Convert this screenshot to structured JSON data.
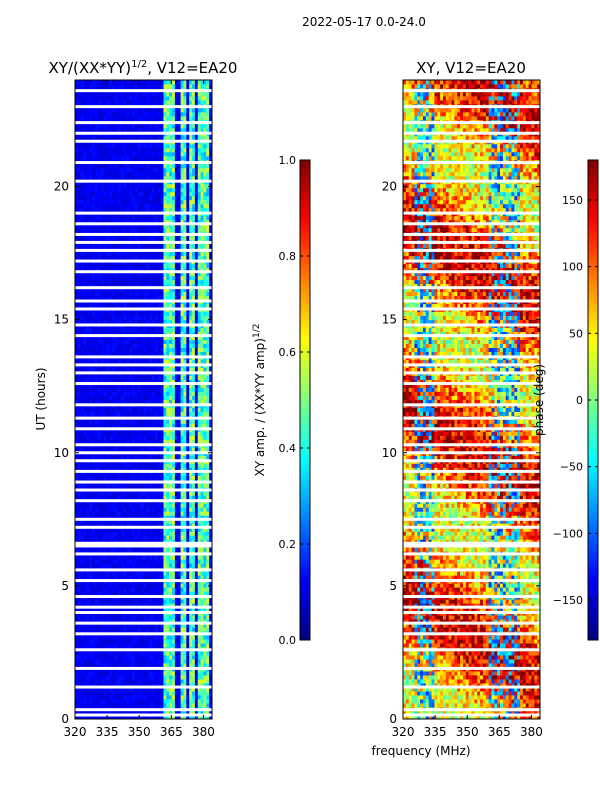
{
  "figure": {
    "suptitle": "2022-05-17 0.0-24.0",
    "shared_xlabel": "frequency (MHz)"
  },
  "colors": {
    "stops": [
      "#00007f",
      "#0000ff",
      "#007fff",
      "#00ffff",
      "#7fff7f",
      "#ffff00",
      "#ff7f00",
      "#ff0000",
      "#7f0000"
    ],
    "gap": "#ffffff"
  },
  "chart_data": [
    {
      "type": "heatmap",
      "title_prefix": "XY/(XX*YY)",
      "title_exponent": "1/2",
      "title_suffix": ", V12=EA20",
      "xlabel": "",
      "ylabel": "UT (hours)",
      "xlim": [
        320,
        384
      ],
      "ylim": [
        0,
        24
      ],
      "xticks": [
        "320",
        "335",
        "350",
        "365",
        "380"
      ],
      "xtick_values": [
        320,
        335,
        350,
        365,
        380
      ],
      "yticks": [
        "0",
        "5",
        "10",
        "15",
        "20"
      ],
      "ytick_values": [
        0,
        5,
        10,
        15,
        20
      ],
      "colorbar": {
        "label_prefix": "XY amp. / (XX*YY amp)",
        "label_exponent": "1/2",
        "range": [
          0.0,
          1.0
        ],
        "ticks": [
          "0.0",
          "0.2",
          "0.4",
          "0.6",
          "0.8",
          "1.0"
        ],
        "tick_values": [
          0.0,
          0.2,
          0.4,
          0.6,
          0.8,
          1.0
        ]
      },
      "pattern": "low amplitude (~0.1) below 361 MHz; bright bands (0.3-0.6) at 362-366, 369-372, 374-376, 378-382 MHz",
      "bright_bands_mhz": [
        [
          362,
          366
        ],
        [
          369,
          372
        ],
        [
          374,
          376
        ],
        [
          378,
          382
        ]
      ],
      "data_gaps_hours": [
        0.15,
        0.35,
        1.2,
        1.9,
        2.6,
        3.2,
        3.6,
        4.0,
        4.2,
        4.6,
        5.2,
        5.6,
        6.2,
        6.5,
        6.6,
        7.2,
        7.5,
        8.2,
        8.6,
        8.9,
        9.3,
        9.7,
        10.0,
        10.3,
        10.9,
        11.3,
        11.8,
        12.6,
        13.0,
        13.3,
        13.6,
        14.4,
        14.8,
        15.4,
        15.7,
        16.2,
        16.8,
        17.2,
        17.6,
        17.9,
        18.2,
        18.6,
        19.0,
        20.2,
        20.9,
        21.7,
        22.0,
        22.4,
        23.0,
        23.6
      ]
    },
    {
      "type": "heatmap",
      "title": "XY, V12=EA20",
      "xlabel": "frequency (MHz)",
      "ylabel": "",
      "xlim": [
        320,
        384
      ],
      "ylim": [
        0,
        24
      ],
      "xticks": [
        "320",
        "335",
        "350",
        "365",
        "380"
      ],
      "xtick_values": [
        320,
        335,
        350,
        365,
        380
      ],
      "yticks": [
        "0",
        "5",
        "10",
        "15",
        "20"
      ],
      "ytick_values": [
        0,
        5,
        10,
        15,
        20
      ],
      "colorbar": {
        "label": "phase (deg)",
        "range": [
          -180,
          180
        ],
        "ticks": [
          "−150",
          "−100",
          "−50",
          "0",
          "50",
          "100",
          "150"
        ],
        "tick_values": [
          -150,
          -100,
          -50,
          0,
          50,
          100,
          150
        ]
      },
      "pattern": "noisy phase; mostly 60-150 deg (orange/red) with bands of -150 to -50 deg (blue) near 325-335 MHz and 360-375 MHz",
      "data_gaps_hours": [
        0.15,
        0.35,
        1.2,
        1.9,
        2.6,
        3.2,
        3.6,
        4.0,
        4.2,
        4.6,
        5.2,
        5.6,
        6.2,
        6.5,
        6.6,
        7.2,
        7.5,
        8.2,
        8.6,
        8.9,
        9.3,
        9.7,
        10.0,
        10.3,
        10.9,
        11.3,
        11.8,
        12.6,
        13.0,
        13.3,
        13.6,
        14.4,
        14.8,
        15.4,
        15.7,
        16.2,
        16.8,
        17.2,
        17.6,
        17.9,
        18.2,
        18.6,
        19.0,
        20.2,
        20.9,
        21.7,
        22.0,
        22.4,
        23.0,
        23.6
      ]
    }
  ]
}
